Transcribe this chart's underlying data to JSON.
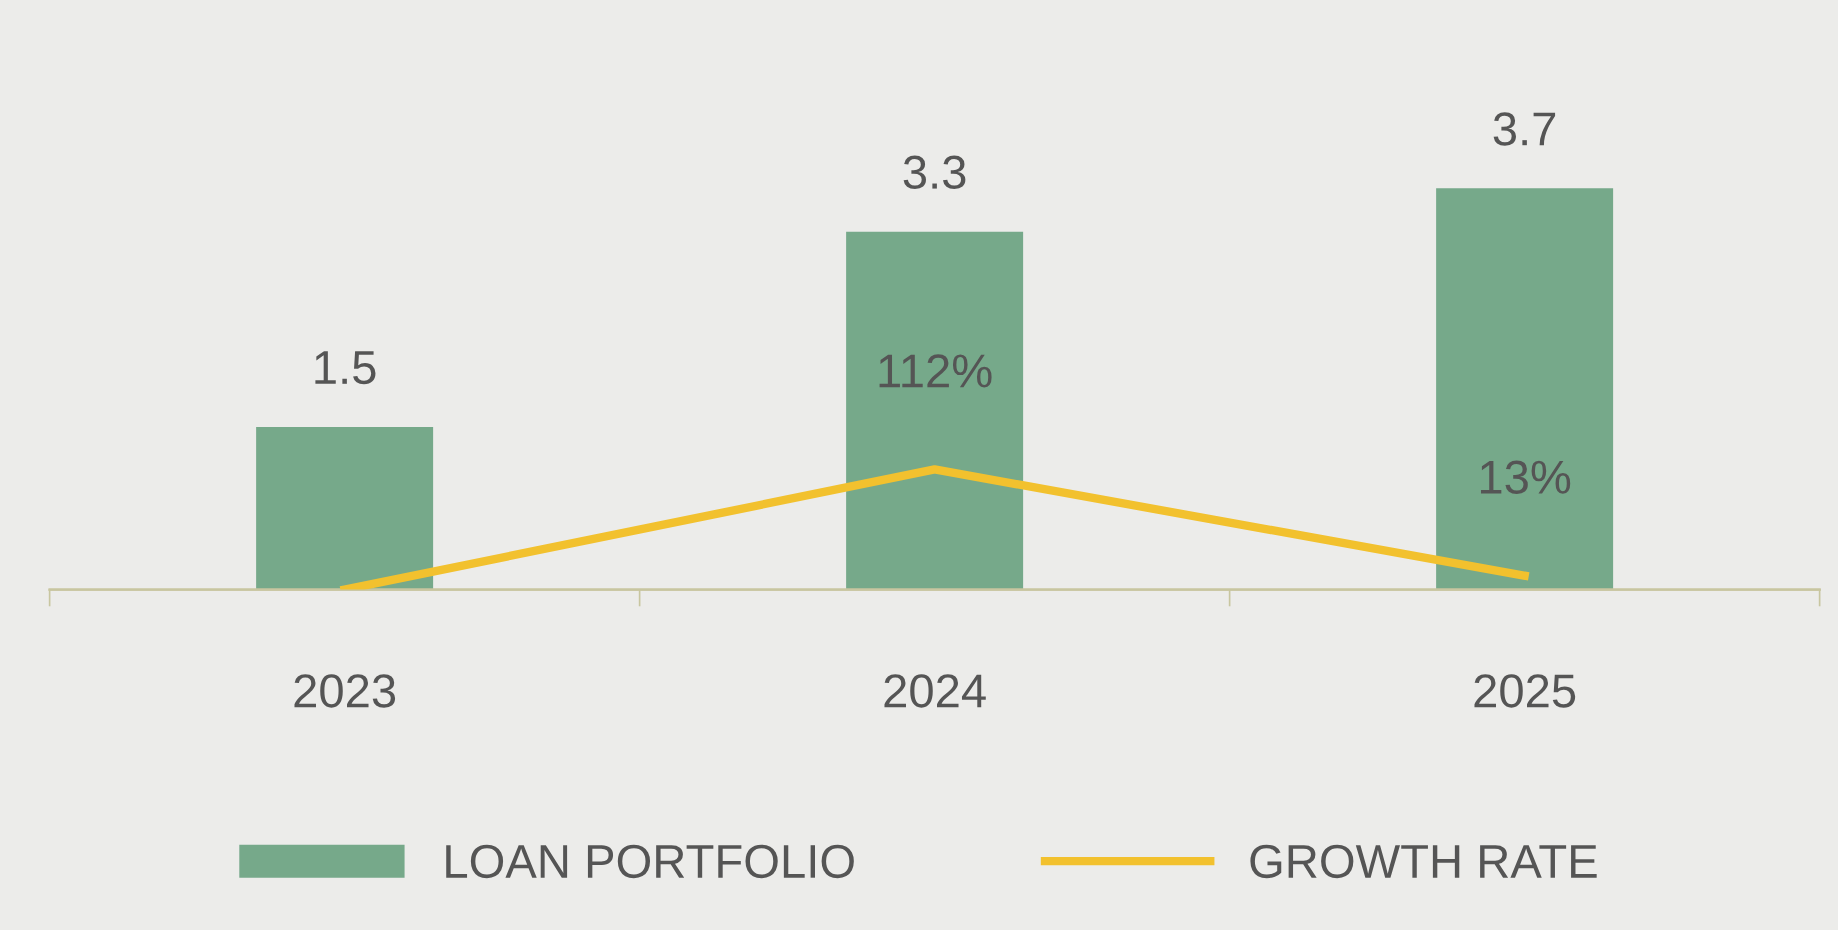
{
  "chart_data": {
    "type": "bar",
    "categories": [
      "2023",
      "2024",
      "2025"
    ],
    "series": [
      {
        "name": "LOAN PORTFOLIO",
        "color": "#76a98a",
        "values": [
          1.5,
          3.3,
          3.7
        ],
        "data_labels": true
      },
      {
        "name": "GROWTH RATE",
        "type": "line",
        "axis": "y2",
        "color": "#f2c12e",
        "values": [
          0,
          112,
          13
        ],
        "value_labels": [
          null,
          "112%",
          "13%"
        ]
      }
    ],
    "tick_labels": "x",
    "grid": false,
    "legend": "bottom",
    "marker": "none",
    "line_style": "solid"
  }
}
